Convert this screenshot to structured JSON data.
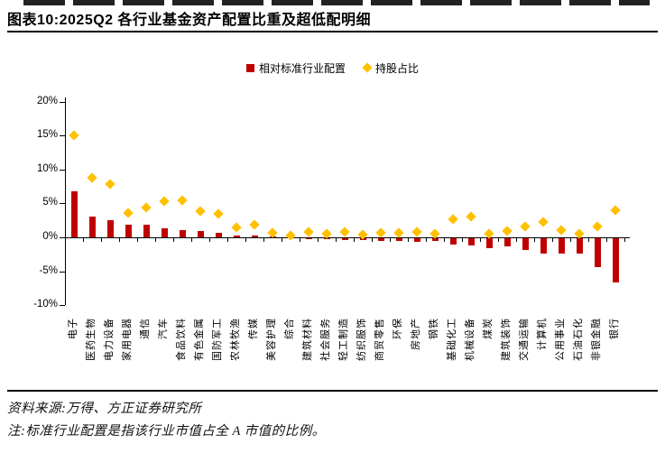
{
  "header": {
    "title": "图表10:2025Q2 各行业基金资产配置比重及超低配明细"
  },
  "legend": {
    "items": [
      {
        "label": "相对标准行业配置",
        "marker": "square",
        "color": "#C00000"
      },
      {
        "label": "持股占比",
        "marker": "diamond",
        "color": "#FFC000"
      }
    ]
  },
  "chart_data": {
    "type": "bar",
    "title": "图表10:2025Q2 各行业基金资产配置比重及超低配明细",
    "unit": "%",
    "categories": [
      "电子",
      "医药生物",
      "电力设备",
      "家用电器",
      "通信",
      "汽车",
      "食品饮料",
      "有色金属",
      "国防军工",
      "农林牧渔",
      "传媒",
      "美容护理",
      "综合",
      "建筑材料",
      "社会服务",
      "轻工制造",
      "纺织服饰",
      "商贸零售",
      "环保",
      "房地产",
      "钢铁",
      "基础化工",
      "机械设备",
      "煤炭",
      "建筑装饰",
      "交通运输",
      "计算机",
      "公用事业",
      "石油石化",
      "非银金融",
      "银行"
    ],
    "series": [
      {
        "name": "相对标准行业配置",
        "type": "bar",
        "color": "#C00000",
        "values": [
          6.8,
          3.0,
          2.5,
          1.9,
          1.8,
          1.3,
          1.1,
          0.9,
          0.7,
          0.2,
          0.2,
          0.1,
          0.0,
          -0.1,
          -0.1,
          -0.2,
          -0.3,
          -0.4,
          -0.4,
          -0.5,
          -0.4,
          -0.9,
          -1.0,
          -1.4,
          -1.2,
          -1.7,
          -2.2,
          -2.3,
          -2.3,
          -4.2,
          -6.5
        ]
      },
      {
        "name": "持股占比",
        "type": "scatter",
        "marker": "diamond",
        "color": "#FFC000",
        "values": [
          15.0,
          8.8,
          7.9,
          3.6,
          4.4,
          5.3,
          5.5,
          3.9,
          3.4,
          1.4,
          1.8,
          0.6,
          0.3,
          0.8,
          0.5,
          0.8,
          0.4,
          0.7,
          0.6,
          0.8,
          0.5,
          2.6,
          3.0,
          0.5,
          0.9,
          1.6,
          2.3,
          1.1,
          0.5,
          1.6,
          4.0
        ]
      }
    ],
    "ylim": [
      -10,
      20
    ],
    "ytick_values": [
      20,
      15,
      10,
      5,
      0,
      -5,
      -10
    ],
    "ytick_labels": [
      "20%",
      "15%",
      "10%",
      "5%",
      "0%",
      "-5%",
      "-10%"
    ],
    "xlabel": "",
    "ylabel": "",
    "grid": false,
    "legend_position": "top-center"
  },
  "footer": {
    "source": "资料来源:万得、方正证券研究所",
    "note": "注:标准行业配置是指该行业市值占全 A 市值的比例。"
  }
}
